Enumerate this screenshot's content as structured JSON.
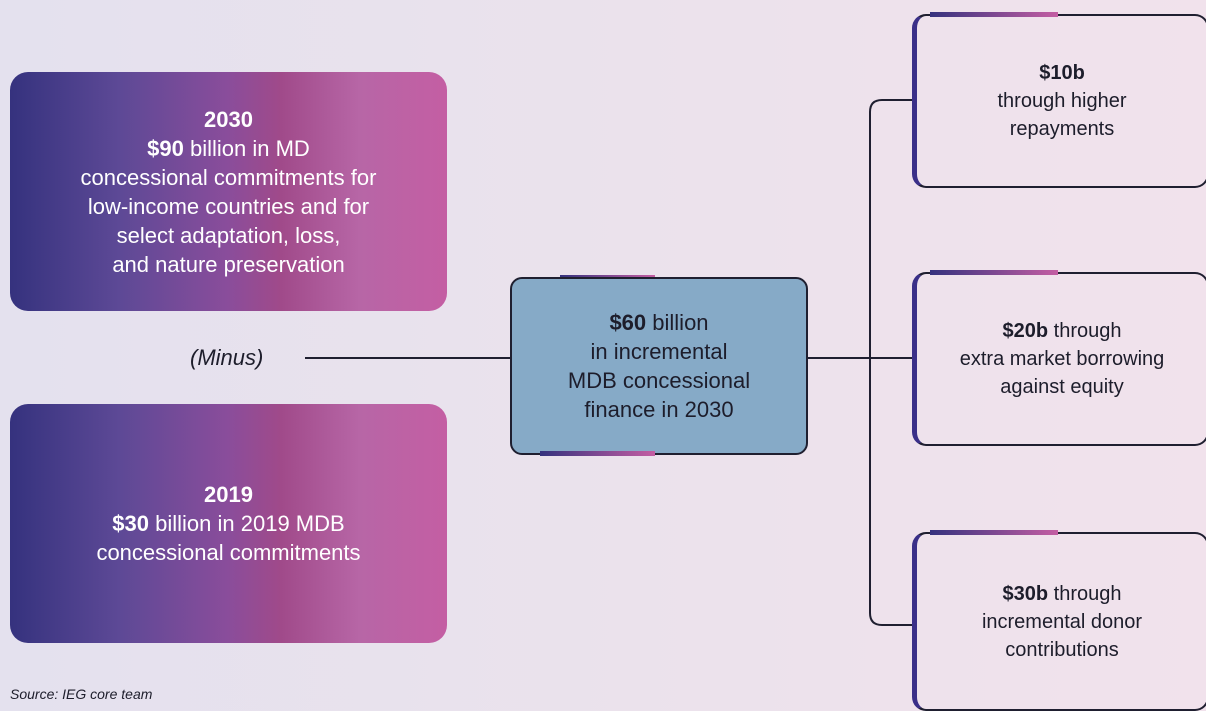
{
  "left_boxes": [
    {
      "year": "2030",
      "lead": "$90",
      "lines": [
        "billion in MD",
        "concessional commitments for",
        "low-income countries and for",
        "select adaptation, loss,",
        "and nature preservation"
      ]
    },
    {
      "year": "2019",
      "lead": "$30",
      "lines": [
        "billion in 2019 MDB",
        "concessional commitments"
      ]
    }
  ],
  "operator": "(Minus)",
  "center_box": {
    "lead": "$60",
    "lines": [
      "billion",
      "in incremental",
      "MDB concessional",
      "finance in 2030"
    ]
  },
  "right_boxes": [
    {
      "lead": "$10b",
      "lines": [
        "through higher",
        "repayments"
      ]
    },
    {
      "lead": "$20b",
      "lines": [
        "through",
        "extra market borrowing",
        "against equity"
      ]
    },
    {
      "lead": "$30b",
      "lines": [
        "through",
        "incremental donor",
        "contributions"
      ]
    }
  ],
  "source": "Source: IEG core team"
}
